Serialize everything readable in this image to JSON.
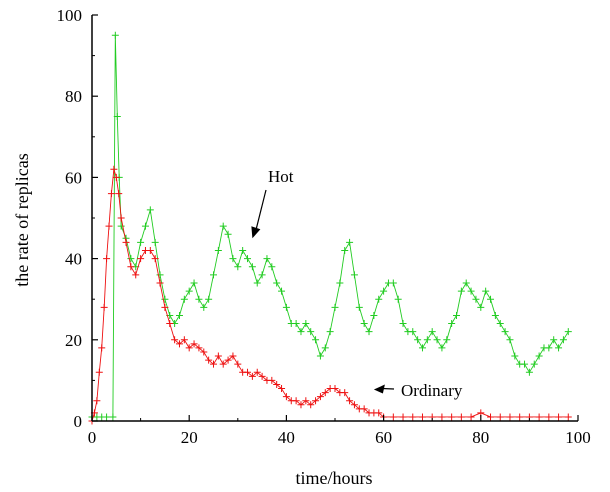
{
  "chart_data": {
    "type": "scatter",
    "title": "",
    "xlabel": "time/hours",
    "ylabel": "the rate of replicas",
    "xlim": [
      0,
      100
    ],
    "ylim": [
      0,
      100
    ],
    "xticks": [
      "0",
      "20",
      "40",
      "60",
      "80",
      "100"
    ],
    "yticks": [
      "0",
      "20",
      "40",
      "60",
      "80",
      "100"
    ],
    "grid": false,
    "legend": "none",
    "marker": "+",
    "colors": {
      "Hot": "#22cc22",
      "Ordinary": "#ee1111"
    },
    "annotations": [
      {
        "text": "Hot",
        "series": "Hot",
        "at": [
          33,
          45
        ]
      },
      {
        "text": "Ordinary",
        "series": "Ordinary",
        "at": [
          58,
          8
        ]
      }
    ],
    "series": [
      {
        "name": "Hot",
        "x": [
          0,
          1,
          2,
          3,
          4.3,
          4.8,
          5.2,
          5.6,
          6,
          7,
          8,
          9,
          10,
          11,
          12,
          13,
          14,
          15,
          16,
          17,
          18,
          19,
          20,
          21,
          22,
          23,
          24,
          25,
          26,
          27,
          28,
          29,
          30,
          31,
          32,
          33,
          34,
          35,
          36,
          37,
          38,
          39,
          40,
          41,
          42,
          43,
          44,
          45,
          46,
          47,
          48,
          49,
          50,
          51,
          52,
          53,
          54,
          55,
          56,
          57,
          58,
          59,
          60,
          61,
          62,
          63,
          64,
          65,
          66,
          67,
          68,
          69,
          70,
          71,
          72,
          73,
          74,
          75,
          76,
          77,
          78,
          79,
          80,
          81,
          82,
          83,
          84,
          85,
          86,
          87,
          88,
          89,
          90,
          91,
          92,
          93,
          94,
          95,
          96,
          97,
          98
        ],
        "values": [
          1,
          1,
          1,
          1,
          1,
          95,
          75,
          60,
          48,
          45,
          40,
          38,
          44,
          48,
          52,
          44,
          36,
          30,
          26,
          24,
          26,
          30,
          32,
          34,
          30,
          28,
          30,
          36,
          42,
          48,
          46,
          40,
          38,
          42,
          40,
          38,
          34,
          36,
          40,
          38,
          34,
          32,
          28,
          24,
          24,
          22,
          24,
          22,
          20,
          16,
          18,
          22,
          28,
          34,
          42,
          44,
          36,
          28,
          24,
          22,
          26,
          30,
          32,
          34,
          34,
          30,
          24,
          22,
          22,
          20,
          18,
          20,
          22,
          20,
          18,
          20,
          24,
          26,
          32,
          34,
          32,
          30,
          28,
          32,
          30,
          26,
          24,
          22,
          20,
          16,
          14,
          14,
          12,
          14,
          16,
          18,
          18,
          20,
          18,
          20,
          22
        ]
      },
      {
        "name": "Ordinary",
        "x": [
          0,
          0.5,
          1,
          1.5,
          2,
          2.5,
          3,
          3.5,
          4,
          4.5,
          5,
          5.5,
          6,
          7,
          8,
          9,
          10,
          11,
          12,
          13,
          14,
          15,
          16,
          17,
          18,
          19,
          20,
          21,
          22,
          23,
          24,
          25,
          26,
          27,
          28,
          29,
          30,
          31,
          32,
          33,
          34,
          35,
          36,
          37,
          38,
          39,
          40,
          41,
          42,
          43,
          44,
          45,
          46,
          47,
          48,
          49,
          50,
          51,
          52,
          53,
          54,
          55,
          56,
          57,
          58,
          59,
          60,
          62,
          64,
          66,
          68,
          70,
          72,
          74,
          76,
          78,
          80,
          82,
          84,
          86,
          88,
          90,
          92,
          94,
          96,
          98
        ],
        "values": [
          0,
          2,
          5,
          12,
          18,
          28,
          40,
          48,
          56,
          62,
          60,
          56,
          50,
          44,
          38,
          36,
          40,
          42,
          42,
          40,
          34,
          28,
          24,
          20,
          19,
          20,
          18,
          19,
          18,
          17,
          15,
          14,
          16,
          14,
          15,
          16,
          14,
          12,
          12,
          11,
          12,
          11,
          10,
          10,
          9,
          8,
          6,
          5,
          5,
          4,
          5,
          4,
          5,
          6,
          7,
          8,
          8,
          7,
          7,
          5,
          4,
          3,
          3,
          2,
          2,
          2,
          1,
          1,
          1,
          1,
          1,
          1,
          1,
          1,
          1,
          1,
          2,
          1,
          1,
          1,
          1,
          1,
          1,
          1,
          1,
          1
        ]
      }
    ]
  }
}
